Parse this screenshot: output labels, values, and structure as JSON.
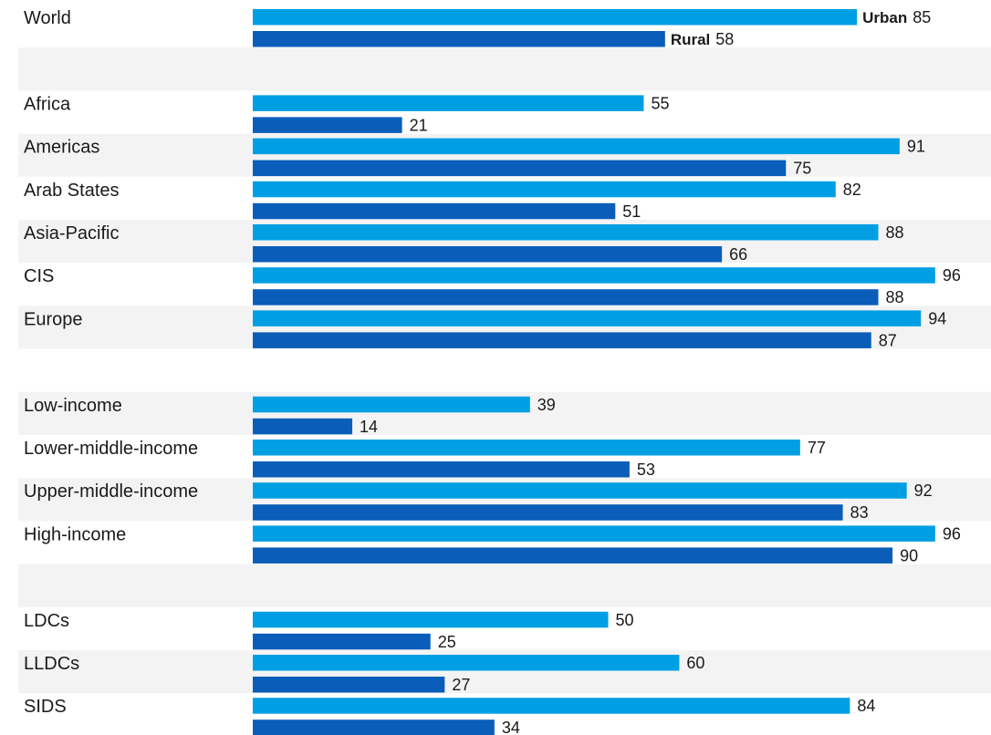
{
  "chart_data": {
    "type": "bar",
    "orientation": "horizontal",
    "categories": [
      "World",
      "",
      "Africa",
      "Americas",
      "Arab States",
      "Asia-Pacific",
      "CIS",
      "Europe",
      "",
      "Low-income",
      "Lower-middle-income",
      "Upper-middle-income",
      "High-income",
      "",
      "LDCs",
      "LLDCs",
      "SIDS"
    ],
    "series": [
      {
        "name": "Urban",
        "color": "#009fe3",
        "values": [
          85,
          null,
          55,
          91,
          82,
          88,
          96,
          94,
          null,
          39,
          77,
          92,
          96,
          null,
          50,
          60,
          84
        ]
      },
      {
        "name": "Rural",
        "color": "#0a5db8",
        "values": [
          58,
          null,
          21,
          75,
          51,
          66,
          88,
          87,
          null,
          14,
          53,
          83,
          90,
          null,
          25,
          27,
          34
        ]
      }
    ],
    "xlim": [
      0,
      100
    ],
    "grid": false,
    "legend": "inline labels on the World bars",
    "title": "",
    "xlabel": "",
    "ylabel": ""
  }
}
